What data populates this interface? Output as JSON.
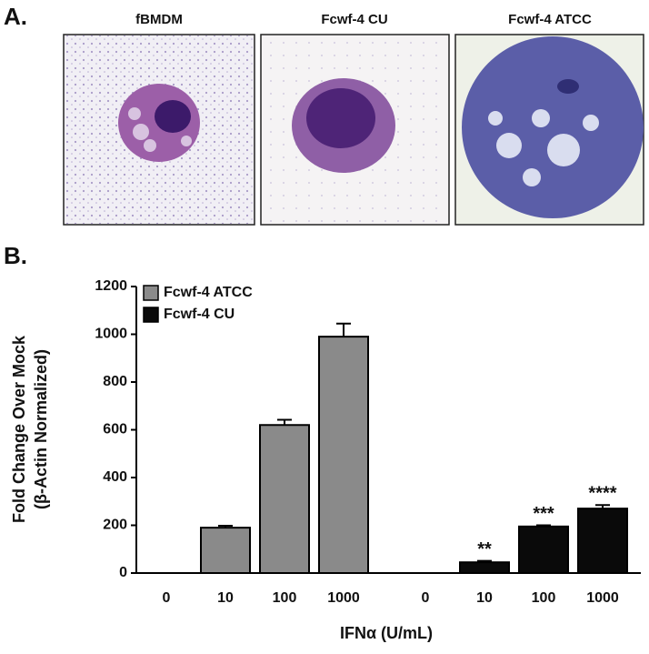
{
  "panels": {
    "a": "A.",
    "b": "B."
  },
  "micrographs": [
    "fBMDM",
    "Fcwf-4 CU",
    "Fcwf-4 ATCC"
  ],
  "chart_data": {
    "type": "bar",
    "y_label": [
      "Fold Change Over Mock",
      "(β-Actin Normalized)"
    ],
    "x_label": "IFNα (U/mL)",
    "categories": [
      "0",
      "10",
      "100",
      "1000",
      "0",
      "10",
      "100",
      "1000"
    ],
    "series": [
      {
        "name": "Fcwf-4 ATCC",
        "color": "#8a8a8a",
        "values": [
          0,
          190,
          620,
          990,
          null,
          null,
          null,
          null
        ],
        "errors": [
          0,
          8,
          22,
          55,
          null,
          null,
          null,
          null
        ]
      },
      {
        "name": "Fcwf-4 CU",
        "color": "#0a0a0a",
        "values": [
          null,
          null,
          null,
          null,
          0,
          45,
          195,
          270
        ],
        "errors": [
          null,
          null,
          null,
          null,
          0,
          6,
          5,
          15
        ],
        "labels": [
          null,
          null,
          null,
          null,
          null,
          "**",
          "***",
          "****"
        ]
      }
    ],
    "ylim": [
      0,
      1200
    ],
    "yticks": [
      0,
      200,
      400,
      600,
      800,
      1000,
      1200
    ],
    "grid": false,
    "legend": "upper left"
  }
}
